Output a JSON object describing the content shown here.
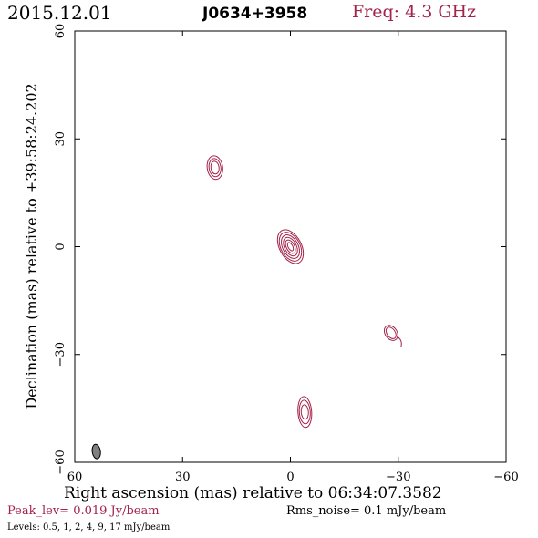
{
  "header": {
    "date": "2015.12.01",
    "source": "J0634+3958",
    "frequency": "Freq: 4.3 GHz"
  },
  "axes": {
    "xlabel": "Right ascension (mas) relative to 06:34:07.3582",
    "ylabel": "Declination (mas) relative to +39:58:24.202",
    "x_range": [
      60,
      -60
    ],
    "y_range": [
      -60,
      60
    ],
    "x_ticks": [
      "60",
      "30",
      "0",
      "−30",
      "−60"
    ],
    "y_ticks": [
      "−60",
      "−30",
      "0",
      "30",
      "60"
    ]
  },
  "footer": {
    "peak": "Peak_lev=  0.019 Jy/beam",
    "rms": "Rms_noise=   0.1 mJy/beam",
    "levels": "Levels: 0.5,   1,   2,   4,   9,  17 mJy/beam"
  },
  "colors": {
    "contour": "#a3234a",
    "beam": "#808080"
  },
  "chart_data": {
    "type": "contour",
    "x_unit": "mas",
    "y_unit": "mas",
    "levels_mJy_per_beam": [
      0.5,
      1,
      2,
      4,
      9,
      17
    ],
    "components": [
      {
        "x": 21,
        "y": 22,
        "n_levels": 3
      },
      {
        "x": 0,
        "y": 0,
        "n_levels": 6
      },
      {
        "x": -28,
        "y": -24,
        "n_levels": 2
      },
      {
        "x": -4,
        "y": -46,
        "n_levels": 3
      }
    ],
    "beam": {
      "x": 54,
      "y": -57
    }
  }
}
